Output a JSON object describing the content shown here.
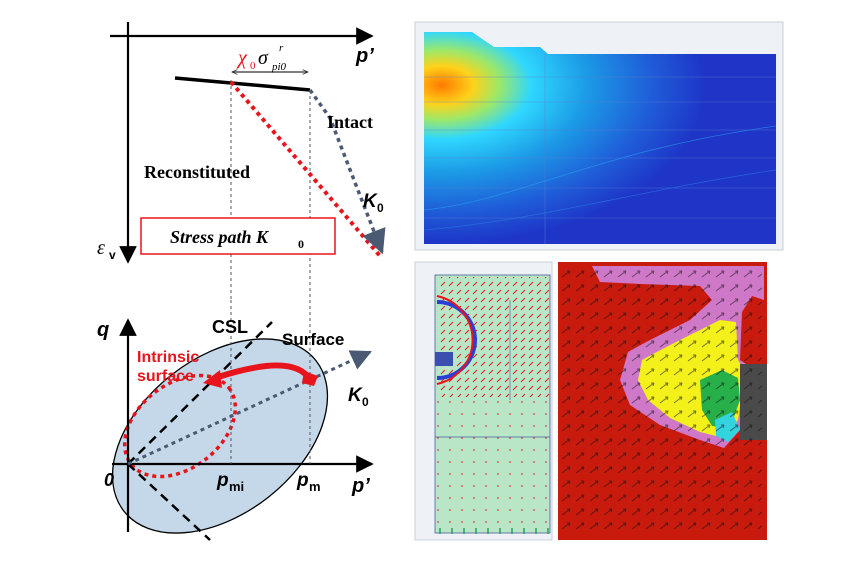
{
  "top_left": {
    "axis_p": "p’",
    "axis_ev_main": "ε",
    "axis_ev_sub": "v",
    "chi_label": "χ",
    "chi_sub": "0",
    "sigma": "σ",
    "sigma_sub": "pi0",
    "sigma_sup": "r",
    "intact": "Intact",
    "reconstituted": "Reconstituted",
    "k0_main": "K",
    "k0_sub": "0",
    "box_text": "Stress path K",
    "box_sub": "0",
    "colors": {
      "red_dotted": "#e8141b",
      "slate_dotted": "#4a5a72",
      "box_border": "#e8141b"
    }
  },
  "bottom_left": {
    "axis_q": "q",
    "axis_p": "p’",
    "origin": "0",
    "csl": "CSL",
    "surface": "Surface",
    "intrinsic_line1": "Intrinsic",
    "intrinsic_line2": "surface",
    "k0_main": "K",
    "k0_sub": "0",
    "pmi_main": "p",
    "pmi_sub": "mi",
    "pm_main": "p",
    "pm_sub": "m",
    "colors": {
      "ellipse_fill": "#c5d8ea",
      "intrinsic": "#e8141b",
      "arrow": "#e8141b"
    }
  },
  "right_panels": {
    "top": {
      "colors": {
        "hot": "#ff8a00",
        "mid": "#2fb8ff",
        "low": "#1e35c8"
      }
    },
    "bottom_left": {
      "colors": {
        "bg": "#b9e6c6",
        "vectors": "#e8141b",
        "ring": "#2a3fd6"
      }
    },
    "bottom_right": {
      "colors": {
        "bg": "#c81a0d",
        "magenta": "#cf78c8",
        "yellow": "#f3f01a",
        "green": "#27b04a"
      }
    }
  }
}
